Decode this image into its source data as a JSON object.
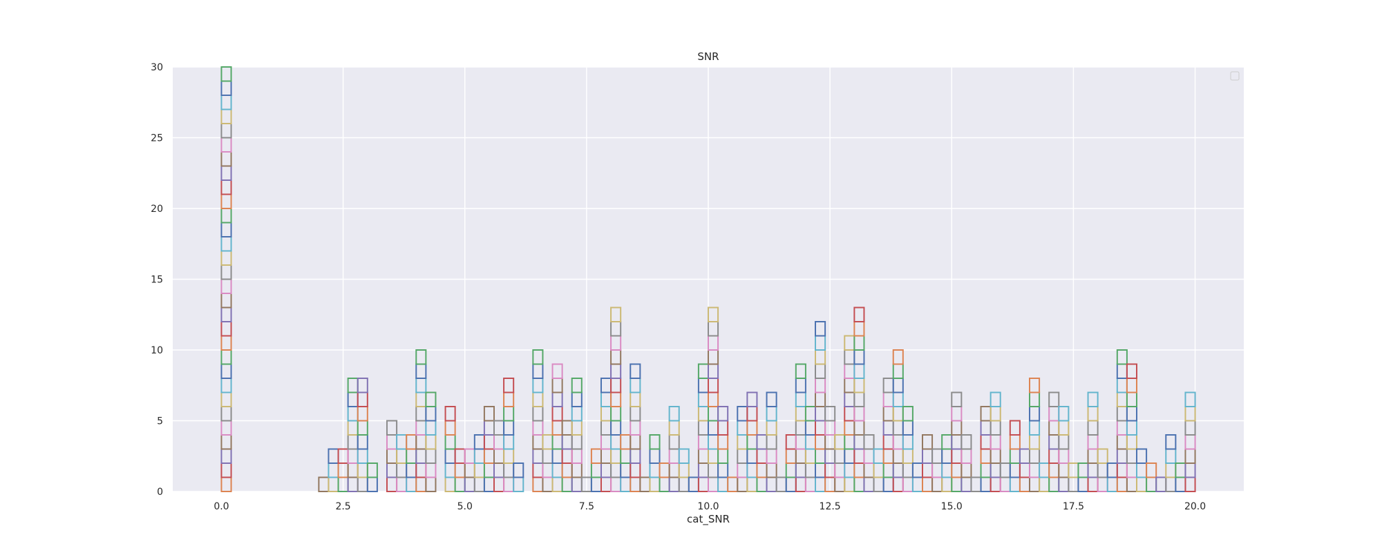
{
  "chart_data": {
    "type": "histogram",
    "title": "SNR",
    "xlabel": "cat_SNR",
    "ylabel": "",
    "xlim": [
      -1.0,
      21.0
    ],
    "ylim": [
      0,
      30
    ],
    "xticks": [
      "0.0",
      "2.5",
      "5.0",
      "7.5",
      "10.0",
      "12.5",
      "15.0",
      "17.5",
      "20.0"
    ],
    "xtick_values": [
      0,
      2.5,
      5,
      7.5,
      10,
      12.5,
      15,
      17.5,
      20
    ],
    "yticks": [
      "0",
      "5",
      "10",
      "15",
      "20",
      "25",
      "30"
    ],
    "ytick_values": [
      0,
      5,
      10,
      15,
      20,
      25,
      30
    ],
    "grid": true,
    "legend": "top-right (empty)",
    "bin_width": 0.2,
    "bin_starts": [
      0.0,
      2.0,
      2.2,
      2.4,
      2.6,
      2.8,
      3.0,
      3.4,
      3.6,
      3.8,
      4.0,
      4.2,
      4.6,
      4.8,
      5.0,
      5.2,
      5.4,
      5.6,
      5.8,
      6.0,
      6.4,
      6.6,
      6.8,
      7.0,
      7.2,
      7.4,
      7.6,
      7.8,
      8.0,
      8.2,
      8.4,
      8.6,
      8.8,
      9.0,
      9.2,
      9.4,
      9.6,
      9.8,
      10.0,
      10.2,
      10.4,
      10.6,
      10.8,
      11.0,
      11.2,
      11.4,
      11.6,
      11.8,
      12.0,
      12.2,
      12.4,
      12.6,
      12.8,
      13.0,
      13.2,
      13.4,
      13.6,
      13.8,
      14.0,
      14.2,
      14.4,
      14.6,
      14.8,
      15.0,
      15.2,
      15.4,
      15.6,
      15.8,
      16.0,
      16.2,
      16.4,
      16.6,
      16.8,
      17.0,
      17.2,
      17.4,
      17.6,
      17.8,
      18.0,
      18.2,
      18.4,
      18.6,
      18.8,
      19.0,
      19.2,
      19.4,
      19.6,
      19.8
    ],
    "counts": [
      30,
      1,
      3,
      3,
      8,
      8,
      2,
      5,
      4,
      4,
      10,
      7,
      6,
      3,
      3,
      4,
      6,
      5,
      8,
      2,
      10,
      4,
      9,
      5,
      8,
      1,
      3,
      8,
      13,
      4,
      9,
      1,
      4,
      2,
      6,
      3,
      1,
      9,
      13,
      6,
      1,
      6,
      7,
      4,
      7,
      1,
      4,
      9,
      6,
      12,
      6,
      4,
      11,
      13,
      4,
      3,
      8,
      10,
      6,
      2,
      4,
      3,
      4,
      7,
      4,
      1,
      6,
      7,
      2,
      5,
      3,
      8,
      2,
      7,
      6,
      2,
      2,
      7,
      3,
      2,
      10,
      9,
      3,
      2,
      1,
      4,
      2,
      7
    ],
    "series_colors": [
      "#dd8452",
      "#c44e52",
      "#8172b3",
      "#937860",
      "#da8bc3",
      "#8c8c8c",
      "#ccb974",
      "#64b5cd",
      "#4c72b0",
      "#55a868"
    ]
  }
}
